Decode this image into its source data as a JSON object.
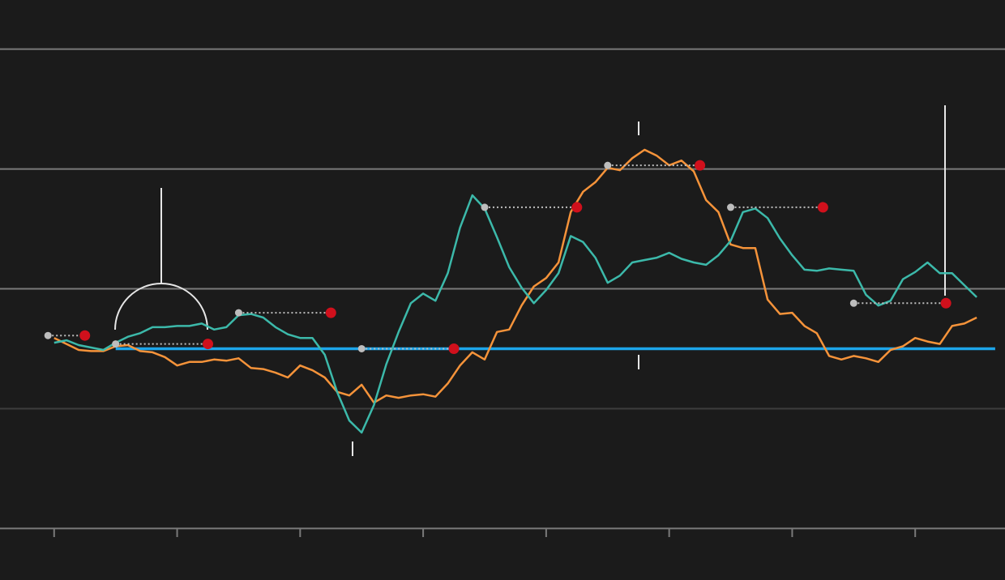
{
  "chart_data": {
    "type": "line",
    "x": [
      0,
      0.1,
      0.2,
      0.3,
      0.4,
      0.5,
      0.6,
      0.7,
      0.8,
      0.9,
      1,
      1.1,
      1.2,
      1.3,
      1.4,
      1.5,
      1.6,
      1.7,
      1.8,
      1.9,
      2,
      2.1,
      2.2,
      2.3,
      2.4,
      2.5,
      2.6,
      2.7,
      2.8,
      2.9,
      3,
      3.1,
      3.2,
      3.3,
      3.4,
      3.5,
      3.6,
      3.7,
      3.8,
      3.9,
      4,
      4.1,
      4.2,
      4.3,
      4.4,
      4.5,
      4.6,
      4.7,
      4.8,
      4.9,
      5,
      5.1,
      5.2,
      5.3,
      5.4,
      5.5,
      5.6,
      5.7,
      5.8,
      5.9,
      6,
      6.1,
      6.2,
      6.3,
      6.4,
      6.5,
      6.6,
      6.7,
      6.8,
      6.9,
      7,
      7.1,
      7.2,
      7.3,
      7.4,
      7.5
    ],
    "series": [
      {
        "color": "#f5933a",
        "values": [
          59,
          54,
          49,
          48,
          48,
          52,
          53,
          48,
          47,
          43,
          36,
          39,
          39,
          41,
          40,
          42,
          34,
          33,
          30,
          26,
          36,
          32,
          26,
          14,
          11,
          20,
          5,
          11,
          9,
          11,
          12,
          10,
          21,
          36,
          47,
          41,
          64,
          66,
          86,
          102,
          109,
          122,
          164,
          181,
          189,
          201,
          199,
          209,
          216,
          211,
          203,
          207,
          198,
          174,
          164,
          137,
          134,
          134,
          91,
          79,
          80,
          69,
          63,
          44,
          41,
          44,
          42,
          39,
          49,
          52,
          59,
          56,
          54,
          69,
          71,
          76
        ]
      },
      {
        "color": "#3cb9aa",
        "values": [
          55,
          57,
          53,
          51,
          49,
          55,
          60,
          63,
          68,
          68,
          69,
          69,
          71,
          66,
          68,
          78,
          79,
          76,
          68,
          62,
          59,
          59,
          45,
          14,
          -10,
          -20,
          3,
          37,
          64,
          88,
          96,
          90,
          113,
          151,
          178,
          167,
          143,
          118,
          101,
          88,
          99,
          113,
          144,
          139,
          126,
          105,
          111,
          122,
          124,
          126,
          130,
          125,
          122,
          120,
          128,
          140,
          164,
          167,
          159,
          142,
          128,
          116,
          115,
          117,
          116,
          115,
          95,
          86,
          90,
          108,
          114,
          122,
          113,
          113,
          103,
          93
        ]
      },
      {
        "color": "#1da5ea",
        "x": [
          0.5,
          7.65
        ],
        "values": [
          50,
          50
        ]
      }
    ],
    "markers": {
      "start_x": [
        -0.05,
        0.5,
        1.5,
        2.5,
        3.5,
        4.5,
        5.5,
        6.5
      ],
      "end_x": [
        0.25,
        1.25,
        2.25,
        3.25,
        4.25,
        5.25,
        6.25,
        7.25
      ],
      "values": [
        61,
        54,
        80,
        50,
        168,
        203,
        168,
        88
      ],
      "start_color": "#bdbdbd",
      "end_color": "#d0101c"
    },
    "xlim": [
      -0.44,
      7.73
    ],
    "xticks": [
      0,
      1,
      2,
      3,
      4,
      5,
      6,
      7
    ],
    "ylim": [
      -143,
      341
    ],
    "yticks": [
      -100,
      0,
      100,
      200,
      300
    ],
    "grid": true
  }
}
